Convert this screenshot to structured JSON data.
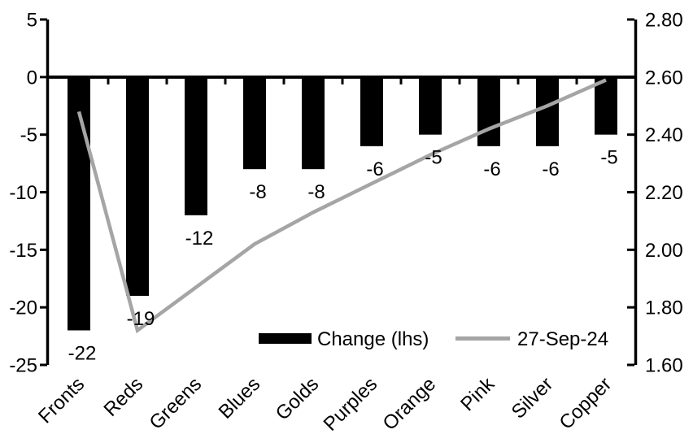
{
  "chart_data": {
    "type": "bar",
    "subtype": "dual-axis bar+line combo",
    "title": "",
    "xlabel": "",
    "ylabel": "",
    "grid": false,
    "categories": [
      "Fronts",
      "Reds",
      "Greens",
      "Blues",
      "Golds",
      "Purples",
      "Orange",
      "Pink",
      "Silver",
      "Copper"
    ],
    "series": [
      {
        "name": "Change (lhs)",
        "type": "bar",
        "axis": "left",
        "color": "#000000",
        "values": [
          -22,
          -19,
          -12,
          -8,
          -8,
          -6,
          -5,
          -6,
          -6,
          -5
        ],
        "data_labels": [
          "-22",
          "-19",
          "-12",
          "-8",
          "-8",
          "-6",
          "-5",
          "-6",
          "-6",
          "-5"
        ]
      },
      {
        "name": "27-Sep-24",
        "type": "line",
        "axis": "right",
        "color": "#a5a5a5",
        "values": [
          2.48,
          1.72,
          1.87,
          2.02,
          2.13,
          2.23,
          2.33,
          2.42,
          2.5,
          2.59
        ]
      }
    ],
    "left_axis": {
      "min": -25,
      "max": 5,
      "step": 5,
      "tick_labels": [
        "5",
        "0",
        "-5",
        "-10",
        "-15",
        "-20",
        "-25"
      ]
    },
    "right_axis": {
      "min": 1.6,
      "max": 2.8,
      "step": 0.2,
      "tick_labels": [
        "2.80",
        "2.60",
        "2.40",
        "2.20",
        "2.00",
        "1.80",
        "1.60"
      ]
    },
    "legend": {
      "position": "bottom-inside",
      "entries": [
        "Change (lhs)",
        "27-Sep-24"
      ]
    }
  },
  "colors": {
    "bar": "#000000",
    "line": "#a5a5a5",
    "axis": "#000000",
    "text": "#000000",
    "background": "#ffffff"
  }
}
